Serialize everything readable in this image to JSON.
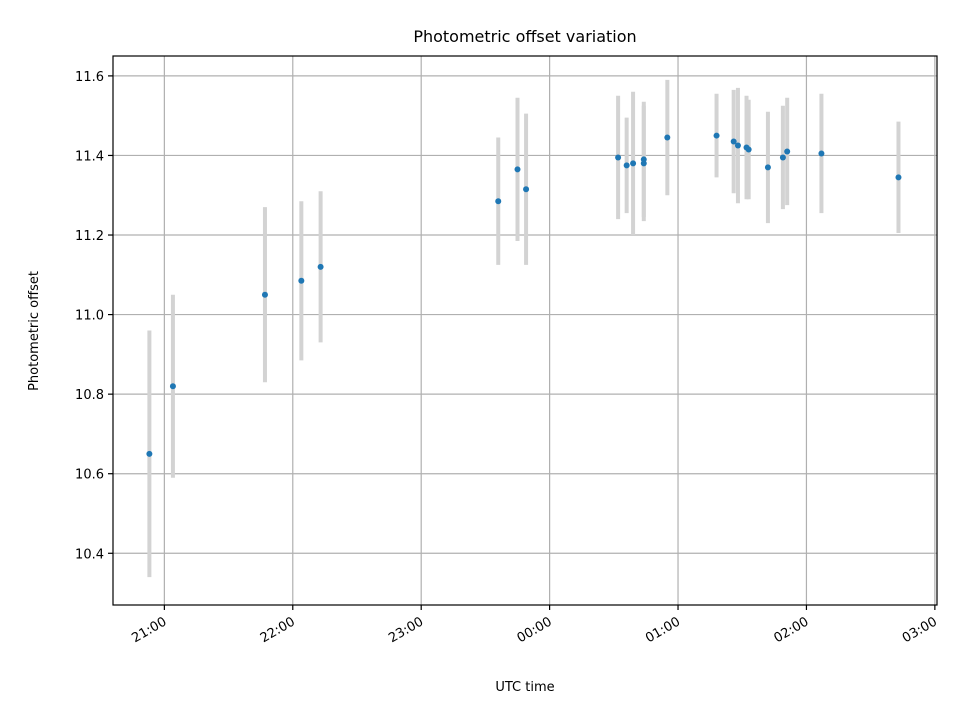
{
  "chart_data": {
    "type": "scatter",
    "title": "Photometric offset variation",
    "xlabel": "UTC time",
    "ylabel": "Photometric offset",
    "x_unit": "UTC time (HH:MM, 20:30 to 03:00 across midnight)",
    "xlim": [
      "20:36",
      "03:01"
    ],
    "ylim": [
      10.27,
      11.65
    ],
    "xticks": [
      "21:00",
      "22:00",
      "23:00",
      "00:00",
      "01:00",
      "02:00",
      "03:00"
    ],
    "yticks": [
      "10.4",
      "10.6",
      "10.8",
      "11.0",
      "11.2",
      "11.4",
      "11.6"
    ],
    "grid": true,
    "legend": false,
    "colors": {
      "point": "#1f77b4",
      "errorbar": "#d3d3d3",
      "grid": "#b0b0b0",
      "axes": "#000000"
    },
    "series": [
      {
        "points": [
          {
            "x": "20:53",
            "y": 10.65,
            "err": 0.31
          },
          {
            "x": "21:04",
            "y": 10.82,
            "err": 0.23
          },
          {
            "x": "21:47",
            "y": 11.05,
            "err": 0.22
          },
          {
            "x": "22:04",
            "y": 11.085,
            "err": 0.2
          },
          {
            "x": "22:13",
            "y": 11.12,
            "err": 0.19
          },
          {
            "x": "23:36",
            "y": 11.285,
            "err": 0.16
          },
          {
            "x": "23:45",
            "y": 11.365,
            "err": 0.18
          },
          {
            "x": "23:49",
            "y": 11.315,
            "err": 0.19
          },
          {
            "x": "00:32",
            "y": 11.395,
            "err": 0.155
          },
          {
            "x": "00:36",
            "y": 11.375,
            "err": 0.12
          },
          {
            "x": "00:39",
            "y": 11.38,
            "err": 0.18
          },
          {
            "x": "00:44",
            "y": 11.39,
            "err": 0.145
          },
          {
            "x": "00:44",
            "y": 11.38,
            "err": 0.145
          },
          {
            "x": "00:55",
            "y": 11.445,
            "err": 0.145
          },
          {
            "x": "01:18",
            "y": 11.45,
            "err": 0.105
          },
          {
            "x": "01:26",
            "y": 11.435,
            "err": 0.13
          },
          {
            "x": "01:28",
            "y": 11.425,
            "err": 0.145
          },
          {
            "x": "01:32",
            "y": 11.42,
            "err": 0.13
          },
          {
            "x": "01:33",
            "y": 11.415,
            "err": 0.125
          },
          {
            "x": "01:42",
            "y": 11.37,
            "err": 0.14
          },
          {
            "x": "01:49",
            "y": 11.395,
            "err": 0.13
          },
          {
            "x": "01:51",
            "y": 11.41,
            "err": 0.135
          },
          {
            "x": "02:07",
            "y": 11.405,
            "err": 0.15
          },
          {
            "x": "02:43",
            "y": 11.345,
            "err": 0.14
          }
        ]
      }
    ]
  }
}
